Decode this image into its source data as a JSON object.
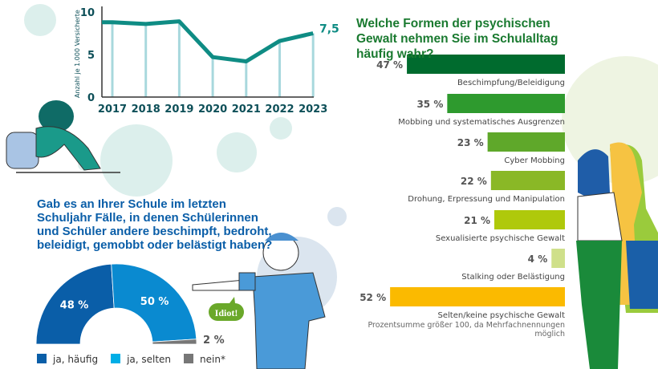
{
  "chart_data": [
    {
      "type": "line",
      "ylabel": "Anzahl je 1.000 Versicherte",
      "x": [
        "2017",
        "2018",
        "2019",
        "2020",
        "2021",
        "2022",
        "2023"
      ],
      "values": [
        8.8,
        8.6,
        8.9,
        4.7,
        4.2,
        6.6,
        7.5
      ],
      "end_label": "7,5",
      "yticks": [
        "0",
        "5",
        "10"
      ],
      "ylim": [
        0,
        10
      ],
      "color": "#0f8c84"
    },
    {
      "type": "bar",
      "title": "Welche Formen der psychischen Gewalt nehmen Sie im Schulalltag häufig wahr?",
      "categories": [
        "Beschimpfung/Beleidigung",
        "Mobbing und systematisches Ausgrenzen",
        "Cyber Mobbing",
        "Drohung, Erpressung und Manipulation",
        "Sexualisierte psychische Gewalt",
        "Stalking oder Belästigung",
        "Selten/keine psychische Gewalt"
      ],
      "values": [
        47,
        35,
        23,
        22,
        21,
        4,
        52
      ],
      "value_labels": [
        "47 %",
        "35 %",
        "23 %",
        "22 %",
        "21 %",
        "4 %",
        "52 %"
      ],
      "colors": [
        "#006b2e",
        "#2e9a2e",
        "#5fa82a",
        "#8ab826",
        "#afc90b",
        "#cfe08a",
        "#fbba00"
      ],
      "note": "Prozentsumme größer 100, da Mehrfachnennungen möglich"
    },
    {
      "type": "pie",
      "title": "Gab es an Ihrer Schule im letzten Schuljahr Fälle, in denen Schülerinnen und Schüler andere beschimpft, bedroht, beleidigt, gemobbt oder belästigt haben?",
      "categories": [
        "ja, häufig",
        "ja, selten",
        "nein*"
      ],
      "values": [
        48,
        50,
        2
      ],
      "value_labels": [
        "48 %",
        "50 %",
        "2 %"
      ],
      "colors": [
        "#0a5ea8",
        "#0a8ad0",
        "#777777"
      ]
    }
  ],
  "speech_bubble": "Idiot!"
}
